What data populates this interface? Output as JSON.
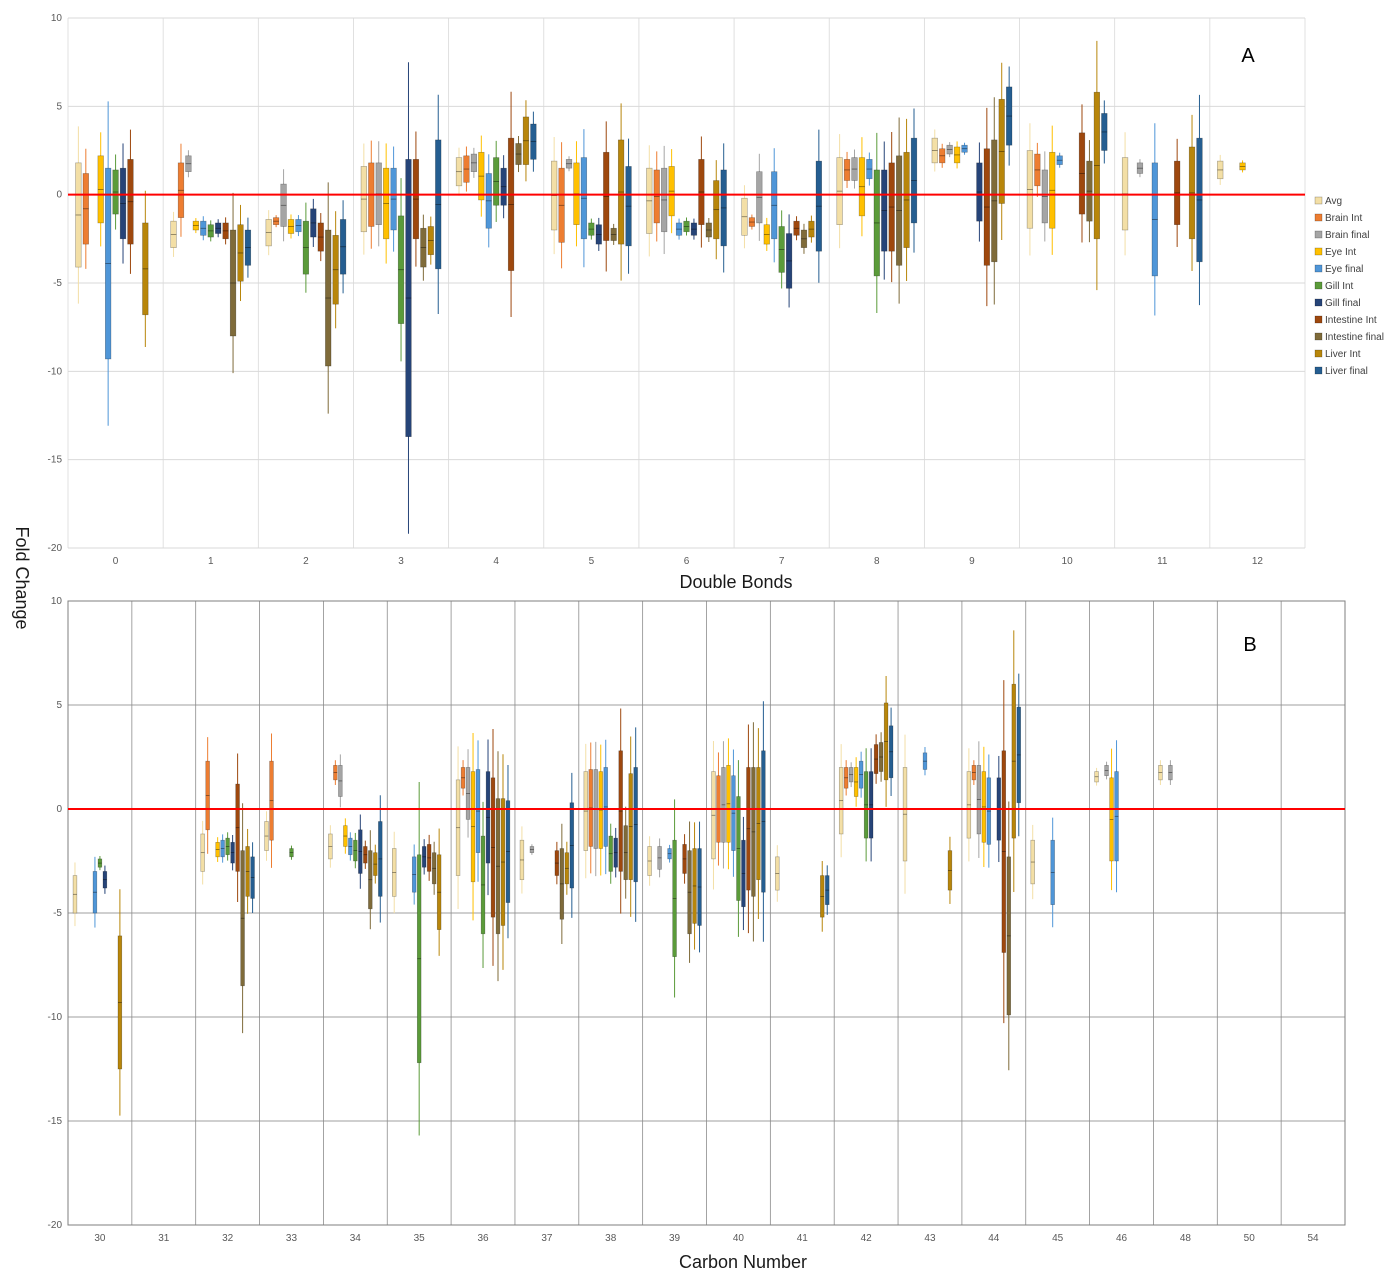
{
  "figure": {
    "ylabel": "Fold Change",
    "series_names": [
      "Avg",
      "Brain Int",
      "Brain final",
      "Eye Int",
      "Eye final",
      "Gill Int",
      "Gill final",
      "Intestine Int",
      "Intestine final",
      "Liver Int",
      "Liver final"
    ],
    "series_colors": [
      "#f3dfa6",
      "#ed7d31",
      "#a5a5a5",
      "#ffc000",
      "#4f96d8",
      "#5b9b3a",
      "#264478",
      "#9e480e",
      "#7f6b3a",
      "#b8860b",
      "#255e91"
    ],
    "reference_line": {
      "value": 0,
      "color": "#ff0000"
    }
  },
  "chart_data": [
    {
      "type": "box",
      "panel": "A",
      "title": "",
      "xlabel": "Double Bonds",
      "ylabel": "Fold Change",
      "ylim": [
        -20,
        10
      ],
      "yticks": [
        -20,
        -15,
        -10,
        -5,
        0,
        5,
        10
      ],
      "grid": true,
      "legend_position": "right",
      "categories": [
        "0",
        "1",
        "2",
        "3",
        "4",
        "5",
        "6",
        "7",
        "8",
        "9",
        "10",
        "11",
        "12"
      ],
      "boxes": {
        "0": [
          [
            -4.1,
            1.8
          ],
          [
            -2.8,
            1.2
          ],
          null,
          [
            -1.6,
            2.2
          ],
          [
            -9.3,
            1.5
          ],
          [
            -1.1,
            1.4
          ],
          [
            -2.5,
            1.5
          ],
          [
            -2.8,
            2.0
          ],
          null,
          [
            -6.8,
            -1.6
          ],
          null
        ],
        "1": [
          [
            -3.0,
            -1.5
          ],
          [
            -1.3,
            1.8
          ],
          [
            1.3,
            2.2
          ],
          [
            -2.0,
            -1.5
          ],
          [
            -2.3,
            -1.5
          ],
          [
            -2.4,
            -1.7
          ],
          [
            -2.2,
            -1.6
          ],
          [
            -2.5,
            -1.6
          ],
          [
            -8.0,
            -2.0
          ],
          [
            -4.9,
            -1.7
          ],
          [
            -4.0,
            -2.0
          ]
        ],
        "2": [
          [
            -2.9,
            -1.4
          ],
          [
            -1.7,
            -1.3
          ],
          [
            -1.8,
            0.6
          ],
          [
            -2.2,
            -1.4
          ],
          [
            -2.1,
            -1.4
          ],
          [
            -4.5,
            -1.5
          ],
          [
            -2.4,
            -0.8
          ],
          [
            -3.2,
            -1.6
          ],
          [
            -9.7,
            -2.0
          ],
          [
            -6.2,
            -2.3
          ],
          [
            -4.5,
            -1.4
          ]
        ],
        "3": [
          [
            -2.1,
            1.6
          ],
          [
            -1.8,
            1.8
          ],
          [
            -1.7,
            1.8
          ],
          [
            -2.5,
            1.5
          ],
          [
            -2.0,
            1.5
          ],
          [
            -7.3,
            -1.2
          ],
          [
            -13.7,
            2.0
          ],
          [
            -2.5,
            2.0
          ],
          [
            -4.1,
            -1.9
          ],
          [
            -3.4,
            -1.8
          ],
          [
            -4.2,
            3.1
          ]
        ],
        "4": [
          [
            0.5,
            2.1
          ],
          [
            0.7,
            2.2
          ],
          [
            1.3,
            2.3
          ],
          [
            -0.3,
            2.4
          ],
          [
            -1.9,
            1.2
          ],
          [
            -0.6,
            2.1
          ],
          [
            -0.6,
            1.5
          ],
          [
            -4.3,
            3.2
          ],
          [
            1.7,
            2.9
          ],
          [
            1.7,
            4.4
          ],
          [
            2.0,
            4.0
          ]
        ],
        "5": [
          [
            -2.0,
            1.9
          ],
          [
            -2.7,
            1.5
          ],
          [
            1.5,
            2.0
          ],
          [
            -1.7,
            1.8
          ],
          [
            -2.5,
            2.1
          ],
          [
            -2.3,
            -1.6
          ],
          [
            -2.8,
            -1.7
          ],
          [
            -2.6,
            2.4
          ],
          [
            -2.6,
            -1.9
          ],
          [
            -2.8,
            3.1
          ],
          [
            -2.9,
            1.6
          ]
        ],
        "6": [
          [
            -2.2,
            1.5
          ],
          [
            -1.6,
            1.4
          ],
          [
            -2.1,
            1.5
          ],
          [
            -1.2,
            1.6
          ],
          [
            -2.3,
            -1.6
          ],
          [
            -2.1,
            -1.5
          ],
          [
            -2.3,
            -1.6
          ],
          [
            -1.7,
            2.0
          ],
          [
            -2.4,
            -1.6
          ],
          [
            -2.5,
            0.8
          ],
          [
            -2.9,
            1.4
          ]
        ],
        "7": [
          [
            -2.3,
            -0.2
          ],
          [
            -1.8,
            -1.3
          ],
          [
            -1.6,
            1.3
          ],
          [
            -2.8,
            -1.7
          ],
          [
            -2.5,
            1.3
          ],
          [
            -4.4,
            -1.8
          ],
          [
            -5.3,
            -2.2
          ],
          [
            -2.3,
            -1.5
          ],
          [
            -3.0,
            -2.0
          ],
          [
            -2.4,
            -1.5
          ],
          [
            -3.2,
            1.9
          ]
        ],
        "8": [
          [
            -1.7,
            2.1
          ],
          [
            0.8,
            2.0
          ],
          [
            0.8,
            2.1
          ],
          [
            -1.2,
            2.1
          ],
          [
            0.9,
            2.0
          ],
          [
            -4.6,
            1.4
          ],
          [
            -3.2,
            1.4
          ],
          [
            -3.2,
            1.8
          ],
          [
            -4.0,
            2.2
          ],
          [
            -3.0,
            2.4
          ],
          [
            -1.6,
            3.2
          ]
        ],
        "9": [
          [
            1.8,
            3.2
          ],
          [
            1.8,
            2.6
          ],
          [
            2.3,
            2.8
          ],
          [
            1.8,
            2.7
          ],
          [
            2.4,
            2.8
          ],
          null,
          [
            -1.5,
            1.8
          ],
          [
            -4.0,
            2.6
          ],
          [
            -3.8,
            3.1
          ],
          [
            -0.5,
            5.4
          ],
          [
            2.8,
            6.1
          ]
        ],
        "10": [
          [
            -1.9,
            2.5
          ],
          [
            0.5,
            2.3
          ],
          [
            -1.6,
            1.4
          ],
          [
            -1.9,
            2.4
          ],
          [
            1.7,
            2.2
          ],
          null,
          null,
          [
            -1.1,
            3.5
          ],
          [
            -1.5,
            1.9
          ],
          [
            -2.5,
            5.8
          ],
          [
            2.5,
            4.6
          ]
        ],
        "11": [
          [
            -2.0,
            2.1
          ],
          null,
          [
            1.2,
            1.8
          ],
          null,
          [
            -4.6,
            1.8
          ],
          null,
          null,
          [
            -1.7,
            1.9
          ],
          null,
          [
            -2.5,
            2.7
          ],
          [
            -3.8,
            3.2
          ]
        ],
        "12": [
          [
            0.9,
            1.9
          ],
          null,
          null,
          [
            1.4,
            1.8
          ],
          null,
          null,
          null,
          null,
          null,
          null,
          null
        ]
      }
    },
    {
      "type": "box",
      "panel": "B",
      "title": "",
      "xlabel": "Carbon Number",
      "ylabel": "Fold Change",
      "ylim": [
        -20,
        10
      ],
      "yticks": [
        -20,
        -15,
        -10,
        -5,
        0,
        5,
        10
      ],
      "grid": true,
      "categories": [
        "30",
        "31",
        "32",
        "33",
        "34",
        "35",
        "36",
        "37",
        "38",
        "39",
        "40",
        "41",
        "42",
        "43",
        "44",
        "45",
        "46",
        "48",
        "50",
        "54"
      ],
      "boxes": {
        "30": [
          [
            -5.0,
            -3.2
          ],
          null,
          null,
          null,
          [
            -5.0,
            -3.0
          ],
          [
            -2.8,
            -2.4
          ],
          [
            -3.8,
            -3.0
          ],
          null,
          null,
          [
            -12.5,
            -6.1
          ],
          null
        ],
        "32": [
          [
            -3.0,
            -1.2
          ],
          [
            -1.0,
            2.3
          ],
          null,
          [
            -2.3,
            -1.6
          ],
          [
            -2.3,
            -1.5
          ],
          [
            -2.2,
            -1.4
          ],
          [
            -2.6,
            -1.6
          ],
          [
            -3.0,
            1.2
          ],
          [
            -8.5,
            -2.0
          ],
          [
            -4.2,
            -1.8
          ],
          [
            -4.3,
            -2.3
          ]
        ],
        "33": [
          [
            -2.0,
            -0.6
          ],
          [
            -1.5,
            2.3
          ],
          null,
          null,
          null,
          [
            -2.3,
            -1.9
          ],
          null,
          null,
          null,
          null,
          null
        ],
        "34": [
          [
            -2.4,
            -1.2
          ],
          [
            1.4,
            2.1
          ],
          [
            0.6,
            2.1
          ],
          [
            -1.8,
            -0.8
          ],
          [
            -2.2,
            -1.4
          ],
          [
            -2.5,
            -1.5
          ],
          [
            -3.1,
            -1.0
          ],
          [
            -2.6,
            -1.8
          ],
          [
            -4.8,
            -2.0
          ],
          [
            -3.2,
            -2.1
          ],
          [
            -4.2,
            -0.6
          ]
        ],
        "35": [
          [
            -4.2,
            -1.9
          ],
          null,
          null,
          null,
          [
            -4.0,
            -2.3
          ],
          [
            -12.2,
            -2.2
          ],
          [
            -2.8,
            -1.8
          ],
          [
            -3.0,
            -1.7
          ],
          [
            -3.6,
            -2.1
          ],
          [
            -5.8,
            -2.2
          ],
          null
        ],
        "36": [
          [
            -3.2,
            1.4
          ],
          [
            1.0,
            2.0
          ],
          [
            -0.5,
            2.0
          ],
          [
            -3.5,
            1.8
          ],
          [
            -2.1,
            1.9
          ],
          [
            -6.0,
            -1.3
          ],
          [
            -2.6,
            1.8
          ],
          [
            -5.2,
            1.5
          ],
          [
            -6.0,
            0.5
          ],
          [
            -5.6,
            0.5
          ],
          [
            -4.5,
            0.4
          ]
        ],
        "37": [
          [
            -3.4,
            -1.5
          ],
          null,
          [
            -2.1,
            -1.8
          ],
          null,
          null,
          null,
          null,
          [
            -3.2,
            -2.0
          ],
          [
            -5.3,
            -1.9
          ],
          [
            -3.6,
            -2.1
          ],
          [
            -3.8,
            0.3
          ]
        ],
        "38": [
          [
            -2.0,
            1.8
          ],
          [
            -1.8,
            1.9
          ],
          [
            -1.9,
            1.9
          ],
          [
            -1.9,
            1.8
          ],
          [
            -1.8,
            2.0
          ],
          [
            -3.0,
            -1.3
          ],
          [
            -2.8,
            -1.4
          ],
          [
            -3.0,
            2.8
          ],
          [
            -3.4,
            -0.8
          ],
          [
            -3.4,
            1.7
          ],
          [
            -3.5,
            2.0
          ]
        ],
        "39": [
          [
            -3.2,
            -1.8
          ],
          null,
          [
            -2.9,
            -1.8
          ],
          null,
          [
            -2.4,
            -1.9
          ],
          [
            -7.1,
            -1.5
          ],
          null,
          [
            -3.1,
            -1.7
          ],
          [
            -6.0,
            -2.0
          ],
          [
            -5.5,
            -1.9
          ],
          [
            -5.6,
            -1.9
          ]
        ],
        "40": [
          [
            -2.4,
            1.8
          ],
          [
            -1.6,
            1.6
          ],
          [
            -1.6,
            2.0
          ],
          [
            -1.6,
            2.1
          ],
          [
            -2.0,
            1.6
          ],
          [
            -4.4,
            0.6
          ],
          [
            -4.7,
            -1.5
          ],
          [
            -3.9,
            2.0
          ],
          [
            -4.2,
            2.0
          ],
          [
            -3.4,
            2.0
          ],
          [
            -4.0,
            2.8
          ]
        ],
        "41": [
          [
            -3.9,
            -2.3
          ],
          null,
          null,
          null,
          null,
          null,
          null,
          null,
          null,
          [
            -5.2,
            -3.2
          ],
          [
            -4.6,
            -3.2
          ]
        ],
        "42": [
          [
            -1.2,
            2.0
          ],
          [
            1.0,
            2.0
          ],
          [
            1.3,
            2.0
          ],
          [
            0.6,
            2.0
          ],
          [
            1.0,
            2.3
          ],
          [
            -1.4,
            1.8
          ],
          [
            -1.4,
            1.8
          ],
          [
            1.7,
            3.1
          ],
          [
            1.8,
            3.2
          ],
          [
            1.4,
            5.1
          ],
          [
            1.5,
            4.0
          ]
        ],
        "43": [
          [
            -2.5,
            2.0
          ],
          null,
          null,
          null,
          [
            1.9,
            2.7
          ],
          null,
          null,
          null,
          null,
          [
            -3.9,
            -2.0
          ],
          null
        ],
        "44": [
          [
            -1.4,
            1.8
          ],
          [
            1.4,
            2.1
          ],
          [
            -1.2,
            2.1
          ],
          [
            -1.6,
            1.8
          ],
          [
            -1.7,
            1.5
          ],
          null,
          [
            -1.5,
            1.5
          ],
          [
            -6.9,
            2.8
          ],
          [
            -9.9,
            -2.3
          ],
          [
            -1.4,
            6.0
          ],
          [
            0.3,
            4.9
          ]
        ],
        "45": [
          [
            -3.6,
            -1.5
          ],
          null,
          null,
          null,
          [
            -4.6,
            -1.5
          ],
          null,
          null,
          null,
          null,
          null,
          null
        ],
        "46": [
          [
            1.3,
            1.8
          ],
          null,
          [
            1.6,
            2.1
          ],
          [
            -2.5,
            1.5
          ],
          [
            -2.5,
            1.8
          ],
          null,
          null,
          null,
          null,
          null,
          null
        ],
        "48": [
          [
            1.4,
            2.1
          ],
          null,
          [
            1.4,
            2.1
          ],
          null,
          null,
          null,
          null,
          null,
          null,
          null,
          null
        ]
      }
    }
  ]
}
